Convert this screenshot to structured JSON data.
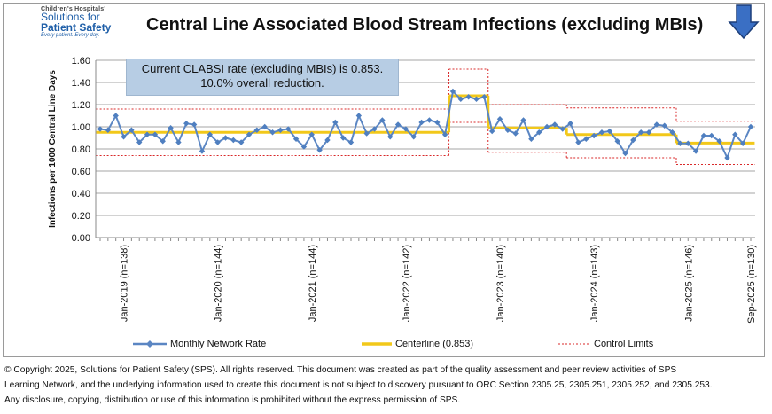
{
  "logo": {
    "line1": "Children's Hospitals'",
    "line2": "Solutions for",
    "line3": "Patient Safety",
    "line4": "Every patient. Every day."
  },
  "title": "Central Line Associated Blood Stream Infections (excluding MBIs)",
  "callout": {
    "line1": "Current CLABSI rate (excluding MBIs) is 0.853.",
    "line2": "10.0% overall reduction."
  },
  "nav_icon": "down-arrow-icon",
  "legend": {
    "series": "Monthly Network Rate",
    "centerline": "Centerline (0.853)",
    "limits": "Control Limits"
  },
  "footer": {
    "line1": "© Copyright 2025, Solutions for Patient Safety (SPS).  All rights reserved.  This document was created as part of the quality assessment and peer review activities of SPS",
    "line2": "Learning Network, and the underlying information used to create this document is not subject to discovery pursuant to ORC Section 2305.25, 2305.251, 2305.252, and 2305.253.",
    "line3": "Any disclosure, copying, distribution or use of this information is prohibited without the express permission of SPS."
  },
  "colors": {
    "series": "#5b86c3",
    "centerline": "#f2c81a",
    "limits": "#d9292a",
    "callout_bg": "#b7cde4",
    "arrow": "#3a6fc4"
  },
  "chart_data": {
    "type": "line",
    "ylabel": "Infections per 1000 Central Line Days",
    "ylim": [
      0,
      1.6
    ],
    "yticks": [
      "0.00",
      "0.20",
      "0.40",
      "0.60",
      "0.80",
      "1.00",
      "1.20",
      "1.40",
      "1.60"
    ],
    "grid": "horizontal",
    "legend_position": "bottom",
    "x_tick_labels": [
      "Jan-2019 (n=138)",
      "Jan-2020 (n=144)",
      "Jan-2021 (n=144)",
      "Jan-2022 (n=142)",
      "Jan-2023 (n=140)",
      "Jan-2024 (n=143)",
      "Jan-2025 (n=146)",
      "Sep-2025 (n=130)"
    ],
    "x_tick_months": [
      0,
      12,
      24,
      36,
      48,
      60,
      72,
      80
    ],
    "x_start_index": -3,
    "series": [
      {
        "name": "Monthly Network Rate",
        "values": [
          0.98,
          0.97,
          1.1,
          0.91,
          0.97,
          0.86,
          0.93,
          0.93,
          0.87,
          0.99,
          0.86,
          1.03,
          1.02,
          0.78,
          0.93,
          0.86,
          0.9,
          0.88,
          0.86,
          0.93,
          0.97,
          1.0,
          0.95,
          0.97,
          0.98,
          0.89,
          0.82,
          0.93,
          0.79,
          0.88,
          1.04,
          0.9,
          0.86,
          1.1,
          0.94,
          0.98,
          1.06,
          0.91,
          1.02,
          0.98,
          0.91,
          1.04,
          1.06,
          1.04,
          0.93,
          1.32,
          1.25,
          1.27,
          1.25,
          1.27,
          0.96,
          1.07,
          0.97,
          0.94,
          1.06,
          0.89,
          0.95,
          1.0,
          1.02,
          0.98,
          1.03,
          0.86,
          0.89,
          0.92,
          0.95,
          0.96,
          0.87,
          0.76,
          0.88,
          0.95,
          0.95,
          1.02,
          1.01,
          0.95,
          0.85,
          0.85,
          0.78,
          0.92,
          0.92,
          0.87,
          0.72,
          0.93,
          0.85,
          1.0
        ]
      },
      {
        "name": "Centerline (0.853)",
        "segments": [
          {
            "from": 0,
            "to": 44,
            "value": 0.95
          },
          {
            "from": 45,
            "to": 49,
            "value": 1.28
          },
          {
            "from": 50,
            "to": 59,
            "value": 0.99
          },
          {
            "from": 60,
            "to": 73,
            "value": 0.93
          },
          {
            "from": 74,
            "to": 83,
            "value": 0.853
          }
        ]
      },
      {
        "name": "Control Limits",
        "segments": [
          {
            "from": 0,
            "to": 44,
            "upper": 1.16,
            "lower": 0.74
          },
          {
            "from": 45,
            "to": 49,
            "upper": 1.52,
            "lower": 1.04
          },
          {
            "from": 50,
            "to": 59,
            "upper": 1.2,
            "lower": 0.77
          },
          {
            "from": 60,
            "to": 73,
            "upper": 1.17,
            "lower": 0.72
          },
          {
            "from": 74,
            "to": 83,
            "upper": 1.05,
            "lower": 0.66
          }
        ]
      }
    ]
  }
}
